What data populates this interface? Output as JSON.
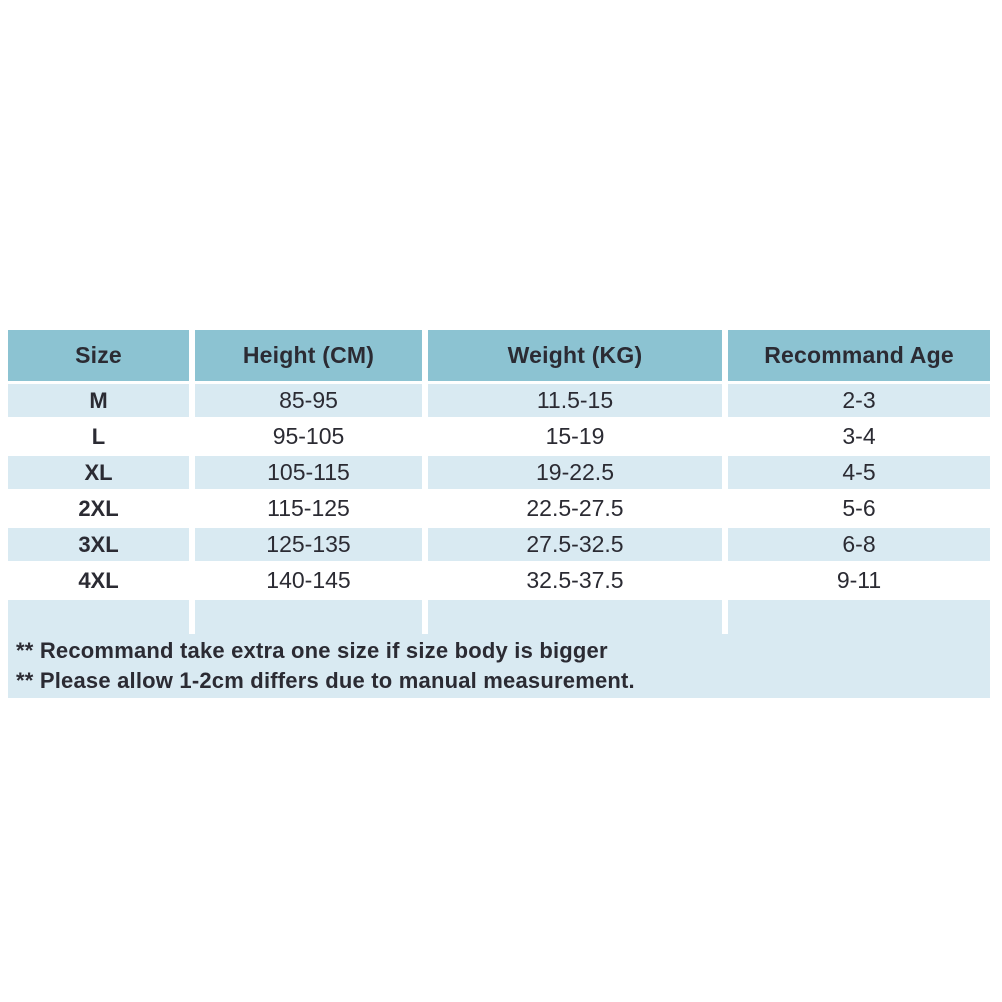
{
  "colors": {
    "header_bg": "#8cc3d2",
    "row_alt_bg": "#d9eaf2",
    "row_bg": "#ffffff",
    "text": "#2b2b33"
  },
  "chart_data": {
    "type": "table",
    "title": "",
    "columns": [
      "Size",
      "Height (CM)",
      "Weight (KG)",
      "Recommand Age"
    ],
    "rows": [
      [
        "M",
        "85-95",
        "11.5-15",
        "2-3"
      ],
      [
        "L",
        "95-105",
        "15-19",
        "3-4"
      ],
      [
        "XL",
        "105-115",
        "19-22.5",
        "4-5"
      ],
      [
        "2XL",
        "115-125",
        "22.5-27.5",
        "5-6"
      ],
      [
        "3XL",
        "125-135",
        "27.5-32.5",
        "6-8"
      ],
      [
        "4XL",
        "140-145",
        "32.5-37.5",
        "9-11"
      ]
    ],
    "notes": [
      "** Recommand take extra one size if size body is bigger",
      "** Please allow 1-2cm differs due to manual measurement."
    ]
  }
}
